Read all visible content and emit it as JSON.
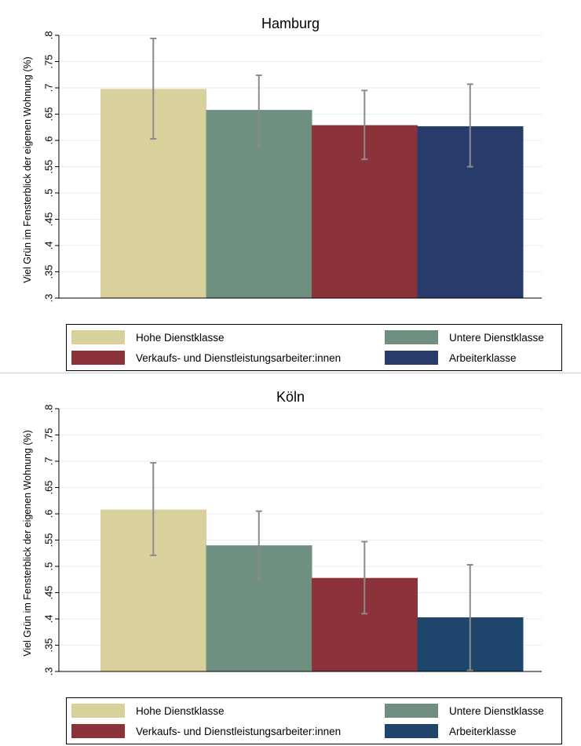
{
  "colors": {
    "hohe": "#d8d19c",
    "untere": "#6f8f81",
    "verkauf": "#8c323a",
    "arbeiter_hamburg": "#283c6c",
    "arbeiter_koeln": "#1e466c",
    "error_bar": "#8c8c8c",
    "grid": "#e6eef2"
  },
  "chart_data": [
    {
      "type": "bar",
      "title": "Hamburg",
      "ylabel": "Viel Grün im Fensterblick der eigenen Wohnung (%)",
      "ylim": [
        0.3,
        0.8
      ],
      "yticks": [
        ".3",
        ".35",
        ".4",
        ".45",
        ".5",
        ".55",
        ".6",
        ".65",
        ".7",
        ".75",
        ".8"
      ],
      "grid": true,
      "categories": [
        "Hohe Dienstklasse",
        "Untere Dienstklasse",
        "Verkaufs- und Dienstleistungsarbeiter:innen",
        "Arbeiterklasse"
      ],
      "values": [
        0.698,
        0.658,
        0.629,
        0.627
      ],
      "ci_low": [
        0.603,
        0.59,
        0.564,
        0.55
      ],
      "ci_high": [
        0.794,
        0.724,
        0.695,
        0.707
      ],
      "legend": [
        {
          "label": "Hohe Dienstklasse",
          "color": "#d8d19c"
        },
        {
          "label": "Untere Dienstklasse",
          "color": "#6f8f81"
        },
        {
          "label": "Verkaufs- und Dienstleistungsarbeiter:innen",
          "color": "#8c323a"
        },
        {
          "label": "Arbeiterklasse",
          "color": "#283c6c"
        }
      ],
      "legend_position": "bottom"
    },
    {
      "type": "bar",
      "title": "Köln",
      "ylabel": "Viel Grün im Fensterblick der eigenen Wohnung (%)",
      "ylim": [
        0.3,
        0.8
      ],
      "yticks": [
        ".3",
        ".35",
        ".4",
        ".45",
        ".5",
        ".55",
        ".6",
        ".65",
        ".7",
        ".75",
        ".8"
      ],
      "grid": true,
      "categories": [
        "Hohe Dienstklasse",
        "Untere Dienstklasse",
        "Verkaufs- und Dienstleistungsarbeiter:innen",
        "Arbeiterklasse"
      ],
      "values": [
        0.608,
        0.54,
        0.478,
        0.403
      ],
      "ci_low": [
        0.521,
        0.476,
        0.41,
        0.302
      ],
      "ci_high": [
        0.697,
        0.605,
        0.547,
        0.503
      ],
      "legend": [
        {
          "label": "Hohe Dienstklasse",
          "color": "#d8d19c"
        },
        {
          "label": "Untere Dienstklasse",
          "color": "#6f8f81"
        },
        {
          "label": "Verkaufs- und Dienstleistungsarbeiter:innen",
          "color": "#8c323a"
        },
        {
          "label": "Arbeiterklasse",
          "color": "#1e466c"
        }
      ],
      "legend_position": "bottom"
    }
  ]
}
